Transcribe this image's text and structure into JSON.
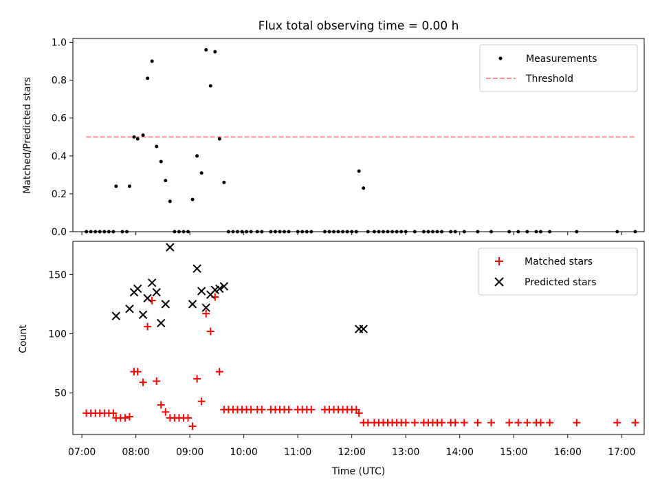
{
  "chart_data": [
    {
      "type": "scatter",
      "title": "Flux total observing time = 0.00 h",
      "xlabel": "",
      "ylabel": "Matched/Predicted stars",
      "ylim": [
        0,
        1.02
      ],
      "yticks": [
        0.0,
        0.2,
        0.4,
        0.6,
        0.8,
        1.0
      ],
      "ytick_labels": [
        "0.0",
        "0.2",
        "0.4",
        "0.6",
        "0.8",
        "1.0"
      ],
      "grid": false,
      "legend_placement": "upper right",
      "legend": [
        "Measurements",
        "Threshold"
      ],
      "series": [
        {
          "name": "Measurements",
          "marker": "dot",
          "color": "#000000",
          "points": [
            [
              "07:05",
              0
            ],
            [
              "07:10",
              0
            ],
            [
              "07:15",
              0
            ],
            [
              "07:20",
              0
            ],
            [
              "07:25",
              0
            ],
            [
              "07:30",
              0
            ],
            [
              "07:35",
              0
            ],
            [
              "07:38",
              0.24
            ],
            [
              "07:45",
              0
            ],
            [
              "07:50",
              0
            ],
            [
              "07:53",
              0.24
            ],
            [
              "07:58",
              0.5
            ],
            [
              "08:02",
              0.49
            ],
            [
              "08:08",
              0.51
            ],
            [
              "08:13",
              0.81
            ],
            [
              "08:18",
              0.9
            ],
            [
              "08:23",
              0.45
            ],
            [
              "08:28",
              0.37
            ],
            [
              "08:33",
              0.27
            ],
            [
              "08:38",
              0.16
            ],
            [
              "08:43",
              0
            ],
            [
              "08:48",
              0
            ],
            [
              "08:53",
              0
            ],
            [
              "08:58",
              0
            ],
            [
              "09:03",
              0.17
            ],
            [
              "09:08",
              0.4
            ],
            [
              "09:13",
              0.31
            ],
            [
              "09:18",
              0.96
            ],
            [
              "09:23",
              0.77
            ],
            [
              "09:28",
              0.95
            ],
            [
              "09:33",
              0.49
            ],
            [
              "09:38",
              0.26
            ],
            [
              "09:43",
              0
            ],
            [
              "09:48",
              0
            ],
            [
              "09:53",
              0
            ],
            [
              "09:58",
              0
            ],
            [
              "10:03",
              0
            ],
            [
              "10:08",
              0
            ],
            [
              "10:15",
              0
            ],
            [
              "10:20",
              0
            ],
            [
              "10:30",
              0
            ],
            [
              "10:35",
              0
            ],
            [
              "10:40",
              0
            ],
            [
              "10:45",
              0
            ],
            [
              "10:50",
              0
            ],
            [
              "11:00",
              0
            ],
            [
              "11:05",
              0
            ],
            [
              "11:10",
              0
            ],
            [
              "11:15",
              0
            ],
            [
              "11:30",
              0
            ],
            [
              "11:35",
              0
            ],
            [
              "11:40",
              0
            ],
            [
              "11:45",
              0
            ],
            [
              "11:50",
              0
            ],
            [
              "11:55",
              0
            ],
            [
              "12:00",
              0
            ],
            [
              "12:05",
              0
            ],
            [
              "12:08",
              0.32
            ],
            [
              "12:13",
              0.23
            ],
            [
              "12:18",
              0
            ],
            [
              "12:25",
              0
            ],
            [
              "12:30",
              0
            ],
            [
              "12:35",
              0
            ],
            [
              "12:40",
              0
            ],
            [
              "12:45",
              0
            ],
            [
              "12:50",
              0
            ],
            [
              "12:55",
              0
            ],
            [
              "13:00",
              0
            ],
            [
              "13:10",
              0
            ],
            [
              "13:20",
              0
            ],
            [
              "13:25",
              0
            ],
            [
              "13:30",
              0
            ],
            [
              "13:35",
              0
            ],
            [
              "13:40",
              0
            ],
            [
              "13:50",
              0
            ],
            [
              "13:55",
              0
            ],
            [
              "14:05",
              0
            ],
            [
              "14:20",
              0
            ],
            [
              "14:35",
              0
            ],
            [
              "14:55",
              0
            ],
            [
              "15:05",
              0
            ],
            [
              "15:15",
              0
            ],
            [
              "15:25",
              0
            ],
            [
              "15:30",
              0
            ],
            [
              "15:40",
              0
            ],
            [
              "16:10",
              0
            ],
            [
              "16:55",
              0
            ],
            [
              "17:15",
              0
            ]
          ]
        },
        {
          "name": "Threshold",
          "line_style": "dashed",
          "color": "#ff7f7f",
          "x": [
            "07:05",
            "17:15"
          ],
          "values": [
            0.5,
            0.5
          ]
        }
      ]
    },
    {
      "type": "scatter",
      "title": "",
      "xlabel": "Time (UTC)",
      "ylabel": "Count",
      "ylim": [
        15,
        178
      ],
      "yticks": [
        50,
        100,
        150
      ],
      "ytick_labels": [
        "50",
        "100",
        "150"
      ],
      "xticks": [
        "07:00",
        "08:00",
        "09:00",
        "10:00",
        "11:00",
        "12:00",
        "13:00",
        "14:00",
        "15:00",
        "16:00",
        "17:00"
      ],
      "xlim": [
        "06:50",
        "17:25"
      ],
      "grid": false,
      "legend_placement": "upper right",
      "legend": [
        "Matched stars",
        "Predicted stars"
      ],
      "series": [
        {
          "name": "Matched stars",
          "marker": "plus",
          "color": "#ff0000",
          "points": [
            [
              "07:05",
              33
            ],
            [
              "07:10",
              33
            ],
            [
              "07:15",
              33
            ],
            [
              "07:20",
              33
            ],
            [
              "07:25",
              33
            ],
            [
              "07:30",
              33
            ],
            [
              "07:35",
              33
            ],
            [
              "07:38",
              29
            ],
            [
              "07:43",
              29
            ],
            [
              "07:48",
              29
            ],
            [
              "07:53",
              30
            ],
            [
              "07:58",
              68
            ],
            [
              "08:02",
              68
            ],
            [
              "08:08",
              59
            ],
            [
              "08:13",
              106
            ],
            [
              "08:18",
              128
            ],
            [
              "08:23",
              60
            ],
            [
              "08:28",
              40
            ],
            [
              "08:33",
              34
            ],
            [
              "08:38",
              29
            ],
            [
              "08:43",
              29
            ],
            [
              "08:48",
              29
            ],
            [
              "08:53",
              29
            ],
            [
              "08:58",
              29
            ],
            [
              "09:03",
              22
            ],
            [
              "09:08",
              62
            ],
            [
              "09:13",
              43
            ],
            [
              "09:18",
              117
            ],
            [
              "09:23",
              102
            ],
            [
              "09:28",
              131
            ],
            [
              "09:33",
              68
            ],
            [
              "09:38",
              36
            ],
            [
              "09:43",
              36
            ],
            [
              "09:48",
              36
            ],
            [
              "09:53",
              36
            ],
            [
              "09:58",
              36
            ],
            [
              "10:03",
              36
            ],
            [
              "10:08",
              36
            ],
            [
              "10:15",
              36
            ],
            [
              "10:20",
              36
            ],
            [
              "10:30",
              36
            ],
            [
              "10:35",
              36
            ],
            [
              "10:40",
              36
            ],
            [
              "10:45",
              36
            ],
            [
              "10:50",
              36
            ],
            [
              "11:00",
              36
            ],
            [
              "11:05",
              36
            ],
            [
              "11:10",
              36
            ],
            [
              "11:15",
              36
            ],
            [
              "11:30",
              36
            ],
            [
              "11:35",
              36
            ],
            [
              "11:40",
              36
            ],
            [
              "11:45",
              36
            ],
            [
              "11:50",
              36
            ],
            [
              "11:55",
              36
            ],
            [
              "12:00",
              36
            ],
            [
              "12:05",
              36
            ],
            [
              "12:08",
              33
            ],
            [
              "12:13",
              25
            ],
            [
              "12:18",
              25
            ],
            [
              "12:25",
              25
            ],
            [
              "12:30",
              25
            ],
            [
              "12:35",
              25
            ],
            [
              "12:40",
              25
            ],
            [
              "12:45",
              25
            ],
            [
              "12:50",
              25
            ],
            [
              "12:55",
              25
            ],
            [
              "13:00",
              25
            ],
            [
              "13:10",
              25
            ],
            [
              "13:20",
              25
            ],
            [
              "13:25",
              25
            ],
            [
              "13:30",
              25
            ],
            [
              "13:35",
              25
            ],
            [
              "13:40",
              25
            ],
            [
              "13:50",
              25
            ],
            [
              "13:55",
              25
            ],
            [
              "14:05",
              25
            ],
            [
              "14:20",
              25
            ],
            [
              "14:35",
              25
            ],
            [
              "14:55",
              25
            ],
            [
              "15:05",
              25
            ],
            [
              "15:15",
              25
            ],
            [
              "15:25",
              25
            ],
            [
              "15:30",
              25
            ],
            [
              "15:40",
              25
            ],
            [
              "16:10",
              25
            ],
            [
              "16:55",
              25
            ],
            [
              "17:15",
              25
            ]
          ]
        },
        {
          "name": "Predicted stars",
          "marker": "x",
          "color": "#000000",
          "points": [
            [
              "07:38",
              115
            ],
            [
              "07:53",
              121
            ],
            [
              "07:58",
              135
            ],
            [
              "08:02",
              138
            ],
            [
              "08:08",
              116
            ],
            [
              "08:13",
              130
            ],
            [
              "08:18",
              143
            ],
            [
              "08:23",
              135
            ],
            [
              "08:28",
              109
            ],
            [
              "08:33",
              125
            ],
            [
              "08:38",
              173
            ],
            [
              "09:03",
              125
            ],
            [
              "09:08",
              155
            ],
            [
              "09:13",
              136
            ],
            [
              "09:18",
              122
            ],
            [
              "09:23",
              133
            ],
            [
              "09:28",
              137
            ],
            [
              "09:33",
              138
            ],
            [
              "09:38",
              140
            ],
            [
              "12:08",
              104
            ],
            [
              "12:13",
              104
            ]
          ]
        }
      ]
    }
  ]
}
